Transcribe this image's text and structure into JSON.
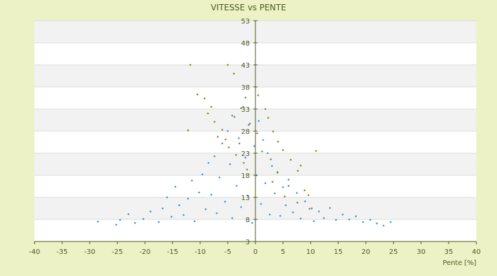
{
  "chart_data": {
    "type": "scatter",
    "title": "VITESSE vs PENTE",
    "xlabel": "Pente [%]",
    "ylabel": "",
    "xlim": [
      -40,
      40
    ],
    "ylim": [
      3,
      53
    ],
    "xticks": [
      -40,
      -35,
      -30,
      -25,
      -20,
      -15,
      -10,
      -5,
      0,
      5,
      10,
      15,
      20,
      25,
      30,
      35,
      40
    ],
    "yticks": [
      3,
      8,
      13,
      18,
      23,
      28,
      33,
      38,
      43,
      48,
      53
    ],
    "grid": true,
    "legend": "none",
    "series": [
      {
        "color": "#3d8fd6",
        "values": [
          [
            -28.5,
            7.5
          ],
          [
            -25.2,
            6.8
          ],
          [
            -24.5,
            7.9
          ],
          [
            -23.0,
            9.2
          ],
          [
            -21.8,
            7.2
          ],
          [
            -20.3,
            8.1
          ],
          [
            -19.0,
            9.8
          ],
          [
            -17.5,
            7.4
          ],
          [
            -16.8,
            10.5
          ],
          [
            -16.0,
            13.0
          ],
          [
            -15.2,
            8.6
          ],
          [
            -14.5,
            15.4
          ],
          [
            -13.8,
            11.2
          ],
          [
            -13.0,
            9.0
          ],
          [
            -12.2,
            12.7
          ],
          [
            -11.5,
            16.8
          ],
          [
            -11.0,
            7.6
          ],
          [
            -10.2,
            14.1
          ],
          [
            -9.6,
            18.2
          ],
          [
            -9.0,
            10.3
          ],
          [
            -8.5,
            20.8
          ],
          [
            -8.0,
            13.6
          ],
          [
            -7.4,
            22.3
          ],
          [
            -7.0,
            9.4
          ],
          [
            -6.5,
            17.5
          ],
          [
            -6.0,
            25.2
          ],
          [
            -5.5,
            12.0
          ],
          [
            -5.0,
            28.0
          ],
          [
            -4.6,
            20.5
          ],
          [
            -4.2,
            8.3
          ],
          [
            -3.8,
            31.2
          ],
          [
            -3.4,
            15.6
          ],
          [
            -3.0,
            26.4
          ],
          [
            -2.6,
            10.8
          ],
          [
            -2.2,
            33.5
          ],
          [
            -1.8,
            22.0
          ],
          [
            -1.4,
            13.4
          ],
          [
            -1.0,
            29.7
          ],
          [
            -0.6,
            7.2
          ],
          [
            -0.2,
            24.6
          ],
          [
            0.2,
            18.0
          ],
          [
            0.6,
            30.3
          ],
          [
            1.0,
            11.5
          ],
          [
            1.4,
            26.0
          ],
          [
            1.8,
            16.2
          ],
          [
            2.2,
            23.0
          ],
          [
            2.6,
            9.1
          ],
          [
            3.0,
            20.1
          ],
          [
            3.5,
            13.9
          ],
          [
            4.0,
            18.6
          ],
          [
            4.5,
            8.8
          ],
          [
            5.0,
            15.3
          ],
          [
            5.5,
            11.2
          ],
          [
            6.0,
            17.0
          ],
          [
            6.8,
            9.6
          ],
          [
            7.5,
            14.0
          ],
          [
            8.2,
            8.2
          ],
          [
            9.0,
            12.1
          ],
          [
            9.8,
            10.4
          ],
          [
            10.6,
            7.6
          ],
          [
            11.5,
            9.8
          ],
          [
            12.4,
            8.3
          ],
          [
            13.5,
            10.6
          ],
          [
            14.6,
            7.9
          ],
          [
            15.8,
            9.1
          ],
          [
            17.0,
            8.0
          ],
          [
            18.2,
            8.7
          ],
          [
            19.5,
            7.4
          ],
          [
            20.8,
            7.9
          ],
          [
            22.0,
            7.1
          ],
          [
            23.2,
            6.6
          ],
          [
            24.5,
            7.4
          ]
        ]
      },
      {
        "color": "#7a8a14",
        "values": [
          [
            -11.8,
            43.0
          ],
          [
            -5.0,
            43.0
          ],
          [
            -3.9,
            41.0
          ],
          [
            -10.5,
            36.3
          ],
          [
            -9.2,
            35.4
          ],
          [
            -1.8,
            35.6
          ],
          [
            0.5,
            36.1
          ],
          [
            -8.0,
            33.5
          ],
          [
            -2.6,
            33.2
          ],
          [
            1.8,
            33.0
          ],
          [
            -7.4,
            30.1
          ],
          [
            -4.2,
            31.5
          ],
          [
            2.3,
            31.0
          ],
          [
            -6.0,
            28.3
          ],
          [
            -1.2,
            29.4
          ],
          [
            3.2,
            27.9
          ],
          [
            -5.4,
            26.1
          ],
          [
            0.3,
            27.5
          ],
          [
            4.1,
            25.6
          ],
          [
            -4.8,
            24.3
          ],
          [
            -2.9,
            25.2
          ],
          [
            5.0,
            23.7
          ],
          [
            -3.5,
            22.6
          ],
          [
            1.2,
            23.4
          ],
          [
            6.4,
            21.5
          ],
          [
            -2.1,
            20.8
          ],
          [
            2.8,
            21.6
          ],
          [
            7.7,
            19.0
          ],
          [
            -1.5,
            19.3
          ],
          [
            4.0,
            18.7
          ],
          [
            3.1,
            16.5
          ],
          [
            6.0,
            15.6
          ],
          [
            8.9,
            14.6
          ],
          [
            5.3,
            13.2
          ],
          [
            7.6,
            11.8
          ],
          [
            10.2,
            10.5
          ],
          [
            -12.2,
            28.2
          ],
          [
            -8.6,
            32.0
          ],
          [
            -6.8,
            26.7
          ],
          [
            9.6,
            13.5
          ],
          [
            11.0,
            23.5
          ],
          [
            8.2,
            20.2
          ]
        ]
      }
    ]
  }
}
